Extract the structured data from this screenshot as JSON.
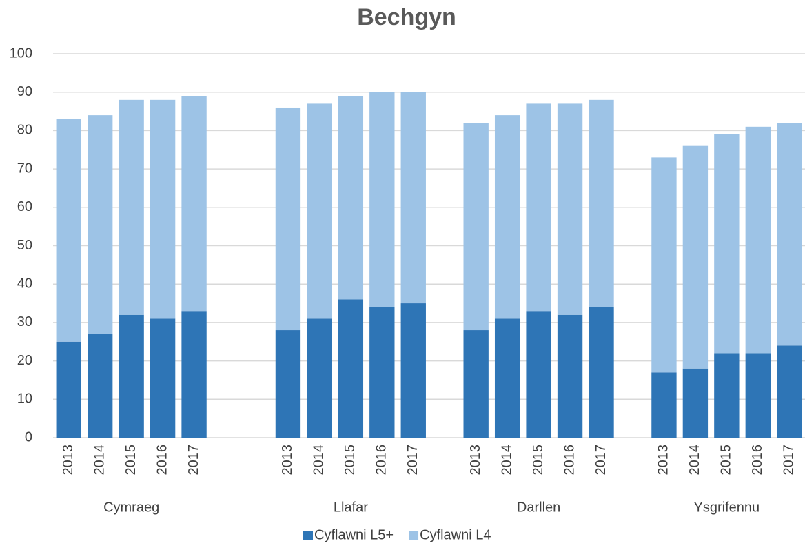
{
  "chart_data": {
    "type": "stacked_bar",
    "title": "Bechgyn",
    "categories": [
      "2013",
      "2014",
      "2015",
      "2016",
      "2017",
      null,
      null,
      "2013",
      "2014",
      "2015",
      "2016",
      "2017",
      null,
      "2013",
      "2014",
      "2015",
      "2016",
      "2017",
      null,
      "2013",
      "2014",
      "2015",
      "2016",
      "2017"
    ],
    "groups": [
      "Cymraeg",
      "Llafar",
      "Darllen",
      "Ysgrifennu"
    ],
    "series": [
      {
        "name": "Cyflawni L5+",
        "color": "#2e75b6",
        "values": [
          25,
          27,
          32,
          31,
          33,
          null,
          null,
          28,
          31,
          36,
          34,
          35,
          null,
          28,
          31,
          33,
          32,
          34,
          null,
          17,
          18,
          22,
          22,
          24
        ]
      },
      {
        "name": "Cyflawni L4",
        "color": "#9dc3e6",
        "values": [
          58,
          57,
          56,
          57,
          56,
          null,
          null,
          58,
          56,
          53,
          56,
          55,
          null,
          54,
          53,
          54,
          55,
          54,
          null,
          56,
          58,
          57,
          59,
          58
        ]
      }
    ],
    "ylim": [
      0,
      100
    ],
    "yticks": [
      0,
      10,
      20,
      30,
      40,
      50,
      60,
      70,
      80,
      90,
      100
    ],
    "grid": true,
    "legend": "bottom"
  }
}
